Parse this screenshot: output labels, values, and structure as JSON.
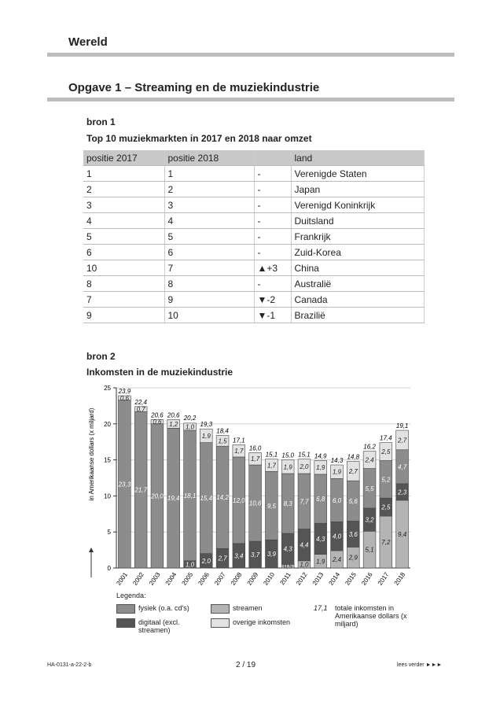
{
  "header": {
    "title": "Wereld"
  },
  "assignment": {
    "title": "Opgave 1 – Streaming en de muziekindustrie"
  },
  "source1": {
    "label": "bron 1",
    "title": "Top 10 muziekmarkten in 2017 en 2018 naar omzet",
    "table": {
      "header": [
        "positie 2017",
        "positie 2018",
        "",
        "land"
      ],
      "rows": [
        [
          1,
          1,
          "-",
          "Verenigde Staten"
        ],
        [
          2,
          2,
          "-",
          "Japan"
        ],
        [
          3,
          3,
          "-",
          "Verenigd Koninkrijk"
        ],
        [
          4,
          4,
          "-",
          "Duitsland"
        ],
        [
          5,
          5,
          "-",
          "Frankrijk"
        ],
        [
          6,
          6,
          "-",
          "Zuid-Korea"
        ],
        [
          10,
          7,
          "▲+3",
          "China"
        ],
        [
          8,
          8,
          "-",
          "Australië"
        ],
        [
          7,
          9,
          "▼-2",
          "Canada"
        ],
        [
          9,
          10,
          "▼-1",
          "Brazilië"
        ]
      ]
    }
  },
  "source2": {
    "label": "bron 2",
    "title": "Inkomsten in de muziekindustrie"
  },
  "chart_data": {
    "type": "stacked-bar",
    "y_label": "in Amerikaanse dollars (x miljard)",
    "categories": [
      "2001",
      "2002",
      "2003",
      "2004",
      "2005",
      "2006",
      "2007",
      "2008",
      "2009",
      "2010",
      "2011",
      "2012",
      "2013",
      "2014",
      "2015",
      "2016",
      "2017",
      "2018"
    ],
    "ylim": [
      0,
      25
    ],
    "yticks": [
      0,
      5,
      10,
      15,
      20,
      25
    ],
    "grid": true,
    "legend_title": "Legenda:",
    "series": [
      {
        "name": "streamen",
        "color": "#b4b4b4",
        "values": [
          0,
          0,
          0,
          0,
          0,
          0,
          0,
          0,
          0,
          0,
          0.5,
          1.0,
          1.9,
          2.4,
          2.9,
          5.1,
          7.2,
          9.4
        ],
        "value_labels": [
          null,
          null,
          null,
          null,
          null,
          null,
          null,
          null,
          null,
          null,
          "0,5",
          "1,0",
          "1,9",
          "2,4",
          "2,9",
          "5,1",
          "7,2",
          "9,4"
        ]
      },
      {
        "name": "digitaal (excl. streamen)",
        "color": "#555555",
        "values": [
          0,
          0,
          0,
          0,
          1.0,
          2.0,
          2.7,
          3.4,
          3.7,
          3.9,
          4.3,
          4.4,
          4.3,
          4.0,
          3.6,
          3.2,
          2.5,
          2.3
        ],
        "value_labels": [
          null,
          null,
          null,
          null,
          "1,0",
          "2,0",
          "2,7",
          "3,4",
          "3,7",
          "3,9",
          "4,3",
          "4,4",
          "4,3",
          "4,0",
          "3,6",
          "3,2",
          "2,5",
          "2,3"
        ]
      },
      {
        "name": "fysiek (o.a. cd's)",
        "color": "#8c8c8c",
        "values": [
          23.3,
          21.7,
          20.0,
          19.4,
          18.1,
          15.4,
          14.2,
          12.0,
          10.6,
          9.5,
          8.3,
          7.7,
          6.8,
          6.0,
          5.6,
          5.5,
          5.2,
          4.7
        ],
        "value_labels": [
          "23,3",
          "21,7",
          "20,0",
          "19,4",
          "18,1",
          "15,4",
          "14,2",
          "12,0",
          "10,6",
          "9,5",
          "8,3",
          "7,7",
          "6,8",
          "6,0",
          "5,6",
          "5,5",
          "5,2",
          "4,7"
        ]
      },
      {
        "name": "overige inkomsten",
        "color": "#e2e2e2",
        "values": [
          0.6,
          0.7,
          0.6,
          1.2,
          1.0,
          1.9,
          1.5,
          1.7,
          1.7,
          1.7,
          1.9,
          2.0,
          1.9,
          1.9,
          2.7,
          2.4,
          2.5,
          2.7
        ],
        "value_labels": [
          "0,6",
          "0,7",
          "0,6",
          "1,2",
          "1,0",
          "1,9",
          "1,5",
          "1,7",
          "1,7",
          "1,7",
          "1,9",
          "2,0",
          "1,9",
          "1,9",
          "2,7",
          "2,4",
          "2,5",
          "2,7"
        ]
      }
    ],
    "totals": {
      "name": "totale inkomsten in Amerikaanse dollars (x miljard)",
      "sample": "17,1",
      "values": [
        23.9,
        22.4,
        20.6,
        20.6,
        20.2,
        19.3,
        18.4,
        17.1,
        16.0,
        15.1,
        15.0,
        15.1,
        14.9,
        14.3,
        14.8,
        16.2,
        17.4,
        19.1
      ],
      "value_labels": [
        "23,9",
        "22,4",
        "20,6",
        "20,6",
        "20,2",
        "19,3",
        "18,4",
        "17,1",
        "16,0",
        "15,1",
        "15,0",
        "15,1",
        "14,9",
        "14,3",
        "14,8",
        "16,2",
        "17,4",
        "19,1"
      ]
    }
  },
  "footer": {
    "code": "HA-0131-a-22-2-b",
    "page": "2 / 19",
    "next": "lees verder ►►►"
  }
}
